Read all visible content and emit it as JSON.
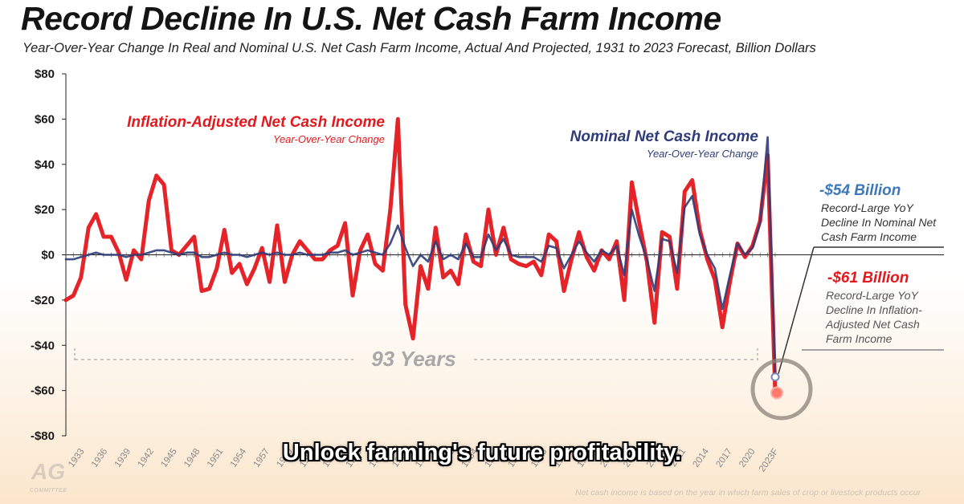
{
  "chart_data": {
    "type": "line",
    "title": "Record Decline In U.S. Net Cash Farm Income",
    "subtitle": "Year-Over-Year Change In Real and Nominal U.S. Net Cash Farm Income, Actual And Projected, 1931 to 2023 Forecast, Billion Dollars",
    "xlabel": "",
    "ylabel": "",
    "ylim": [
      -80,
      80
    ],
    "y_ticks": [
      "$80",
      "$60",
      "$40",
      "$20",
      "$0",
      "-$20",
      "-$40",
      "-$60",
      "-$80"
    ],
    "x_tick_labels": [
      "1933",
      "1936",
      "1939",
      "1942",
      "1945",
      "1948",
      "1951",
      "1954",
      "1957",
      "1960",
      "1963",
      "1966",
      "1969",
      "1972",
      "1975",
      "1978",
      "1981",
      "1984",
      "1987",
      "1990",
      "1993",
      "1996",
      "1999",
      "2002",
      "2005",
      "2008",
      "2011",
      "2014",
      "2017",
      "2020",
      "2023F"
    ],
    "x_tick_years": [
      1933,
      1936,
      1939,
      1942,
      1945,
      1948,
      1951,
      1954,
      1957,
      1960,
      1963,
      1966,
      1969,
      1972,
      1975,
      1978,
      1981,
      1984,
      1987,
      1990,
      1993,
      1996,
      1999,
      2002,
      2005,
      2008,
      2011,
      2014,
      2017,
      2020,
      2023
    ],
    "x_start": 1931,
    "x_end": 2023,
    "grid": false,
    "series": [
      {
        "name": "Inflation-Adjusted Net Cash Income",
        "subname": "Year-Over-Year Change",
        "color": "#e3181d",
        "values": [
          -20,
          -18,
          -10,
          12,
          18,
          8,
          8,
          1,
          -11,
          2,
          -2,
          24,
          35,
          31,
          2,
          0,
          4,
          8,
          -16,
          -15,
          -6,
          11,
          -8,
          -4,
          -13,
          -6,
          3,
          -12,
          13,
          -12,
          0,
          6,
          2,
          -2,
          -2,
          2,
          4,
          14,
          -18,
          2,
          9,
          -4,
          -7,
          20,
          60,
          -22,
          -37,
          -5,
          -15,
          12,
          -10,
          -7,
          -13,
          9,
          -3,
          -5,
          20,
          0,
          12,
          -2,
          -4,
          -5,
          -3,
          -9,
          9,
          6,
          -16,
          -2,
          10,
          -1,
          -7,
          2,
          -2,
          6,
          -20,
          32,
          14,
          -3,
          -30,
          10,
          8,
          -15,
          28,
          33,
          11,
          -2,
          -11,
          -32,
          -12,
          5,
          -1,
          4,
          15,
          44,
          -61
        ]
      },
      {
        "name": "Nominal Net Cash Income",
        "subname": "Year-Over-Year Change",
        "color": "#2f3c78",
        "values": [
          -2,
          -2,
          -1,
          0,
          1,
          0,
          0,
          0,
          -1,
          0,
          0,
          1,
          2,
          2,
          1,
          0,
          1,
          1,
          -1,
          -1,
          0,
          1,
          0,
          0,
          -1,
          0,
          1,
          0,
          1,
          0,
          0,
          1,
          0,
          0,
          0,
          1,
          1,
          2,
          0,
          1,
          2,
          1,
          0,
          5,
          13,
          3,
          -5,
          0,
          -3,
          6,
          -2,
          0,
          -2,
          5,
          -1,
          -1,
          9,
          2,
          7,
          0,
          -1,
          -1,
          -1,
          -3,
          4,
          3,
          -6,
          0,
          6,
          1,
          -3,
          2,
          0,
          4,
          -9,
          20,
          8,
          -2,
          -16,
          7,
          6,
          -8,
          21,
          26,
          9,
          0,
          -6,
          -24,
          -9,
          5,
          0,
          3,
          14,
          52,
          -54
        ]
      }
    ],
    "annotations": {
      "span_label": "93 Years",
      "nominal_callout_value": "-$54 Billion",
      "nominal_callout_text": [
        "Record-Large YoY",
        "Decline In Nominal Net",
        "Cash Farm Income"
      ],
      "real_callout_value": "-$61 Billion",
      "real_callout_text": [
        "Record-Large YoY",
        "Decline In Inflation-",
        "Adjusted Net Cash",
        "Farm Income"
      ]
    }
  },
  "overlay_caption": "Unlock farming's future profitability.",
  "logo_text": "AG",
  "logo_subtext": "COMMITTEE",
  "footnote": "Net cash income is based on the year in which farm sales of crop or livestock products occur"
}
